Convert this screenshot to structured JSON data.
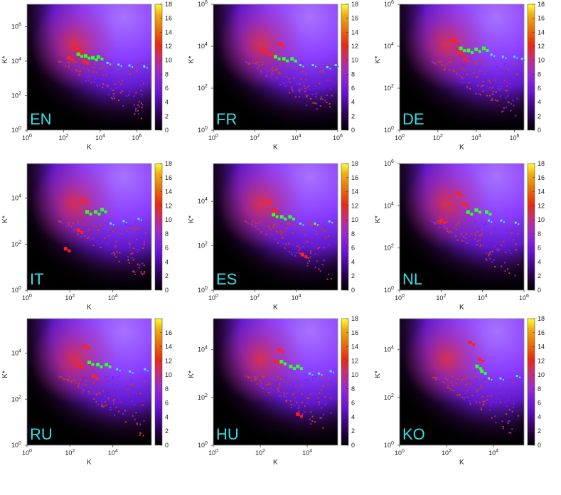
{
  "chart_data": [
    {
      "type": "heatmap",
      "panel_label": "EN",
      "xlabel": "K",
      "ylabel": "K*",
      "x_ticks": [
        "10^0",
        "10^2",
        "10^4",
        "10^6"
      ],
      "y_ticks": [
        "10^0",
        "10^2",
        "10^4",
        "10^6"
      ],
      "x_range_log10": [
        0,
        6.8
      ],
      "y_range_log10": [
        0,
        7.3
      ],
      "colorbar": [
        0,
        2,
        4,
        6,
        8,
        10,
        12,
        14,
        16,
        18
      ],
      "green_points": [
        [
          2.8,
          4.4
        ],
        [
          3.2,
          4.3
        ],
        [
          3.6,
          4.2
        ],
        [
          3.9,
          4.25
        ]
      ],
      "cyan_points": [
        [
          4.4,
          3.9
        ],
        [
          5.0,
          3.8
        ],
        [
          5.6,
          3.75
        ],
        [
          6.4,
          3.7
        ]
      ],
      "red_points": [
        [
          2.6,
          4.8
        ],
        [
          2.9,
          4.6
        ],
        [
          2.3,
          4.2
        ],
        [
          3.1,
          4.0
        ]
      ]
    },
    {
      "type": "heatmap",
      "panel_label": "FR",
      "xlabel": "K",
      "ylabel": "K*",
      "x_ticks": [
        "10^0",
        "10^2",
        "10^4",
        "10^6"
      ],
      "y_ticks": [
        "10^0",
        "10^2",
        "10^4",
        "10^6"
      ],
      "x_range_log10": [
        0,
        6
      ],
      "y_range_log10": [
        0,
        6
      ],
      "colorbar": [
        0,
        2,
        4,
        6,
        8,
        10,
        12,
        14,
        16,
        18
      ],
      "green_points": [
        [
          3.0,
          3.5
        ],
        [
          3.4,
          3.4
        ],
        [
          3.8,
          3.4
        ]
      ],
      "cyan_points": [
        [
          4.2,
          3.1
        ],
        [
          4.8,
          3.1
        ],
        [
          5.5,
          3.0
        ],
        [
          5.9,
          3.1
        ]
      ],
      "red_points": [
        [
          2.4,
          3.8
        ],
        [
          2.8,
          3.6
        ],
        [
          3.2,
          4.1
        ]
      ]
    },
    {
      "type": "heatmap",
      "panel_label": "DE",
      "xlabel": "K",
      "ylabel": "K*",
      "x_ticks": [
        "10^0",
        "10^2",
        "10^4",
        "10^6"
      ],
      "y_ticks": [
        "10^0",
        "10^2",
        "10^4",
        "10^6"
      ],
      "x_range_log10": [
        0,
        6.5
      ],
      "y_range_log10": [
        0,
        6
      ],
      "colorbar": [
        0,
        2,
        4,
        6,
        8,
        10,
        12,
        14,
        16,
        18
      ],
      "green_points": [
        [
          3.2,
          3.9
        ],
        [
          3.6,
          3.8
        ],
        [
          4.0,
          3.85
        ],
        [
          4.4,
          3.9
        ]
      ],
      "cyan_points": [
        [
          4.8,
          3.6
        ],
        [
          5.4,
          3.5
        ],
        [
          6.0,
          3.5
        ],
        [
          6.4,
          3.4
        ]
      ],
      "red_points": [
        [
          2.8,
          4.3
        ],
        [
          3.1,
          3.7
        ],
        [
          3.4,
          3.4
        ]
      ]
    },
    {
      "type": "heatmap",
      "panel_label": "IT",
      "xlabel": "K",
      "ylabel": "K*",
      "x_ticks": [
        "10^0",
        "10^2",
        "10^4"
      ],
      "y_ticks": [
        "10^0",
        "10^2",
        "10^4"
      ],
      "x_range_log10": [
        0,
        5.8
      ],
      "y_range_log10": [
        0,
        5.5
      ],
      "colorbar": [
        0,
        2,
        4,
        6,
        8,
        10,
        12,
        14,
        16,
        18
      ],
      "green_points": [
        [
          2.8,
          3.4
        ],
        [
          3.2,
          3.4
        ],
        [
          3.5,
          3.5
        ]
      ],
      "cyan_points": [
        [
          3.9,
          2.9
        ],
        [
          4.5,
          3.0
        ],
        [
          5.2,
          3.1
        ]
      ],
      "red_points": [
        [
          2.6,
          3.9
        ],
        [
          2.4,
          2.6
        ],
        [
          1.8,
          1.8
        ]
      ]
    },
    {
      "type": "heatmap",
      "panel_label": "ES",
      "xlabel": "K",
      "ylabel": "K*",
      "x_ticks": [
        "10^0",
        "10^2",
        "10^4"
      ],
      "y_ticks": [
        "10^0",
        "10^2",
        "10^4"
      ],
      "x_range_log10": [
        0,
        6
      ],
      "y_range_log10": [
        0,
        5.7
      ],
      "colorbar": [
        0,
        2,
        4,
        6,
        8,
        10,
        12,
        14,
        16,
        18
      ],
      "green_points": [
        [
          2.9,
          3.4
        ],
        [
          3.3,
          3.3
        ],
        [
          3.7,
          3.3
        ]
      ],
      "cyan_points": [
        [
          4.2,
          3.0
        ],
        [
          4.9,
          3.0
        ],
        [
          5.6,
          3.1
        ]
      ],
      "red_points": [
        [
          2.6,
          4.0
        ],
        [
          2.9,
          3.6
        ],
        [
          4.3,
          1.6
        ]
      ]
    },
    {
      "type": "heatmap",
      "panel_label": "NL",
      "xlabel": "K",
      "ylabel": "K*",
      "x_ticks": [
        "10^0",
        "10^2",
        "10^4",
        "10^6"
      ],
      "y_ticks": [
        "10^0",
        "10^2",
        "10^4",
        "10^6"
      ],
      "x_range_log10": [
        0,
        6
      ],
      "y_range_log10": [
        0,
        6
      ],
      "colorbar": [
        0,
        2,
        4,
        6,
        8,
        10,
        12,
        14,
        16,
        18
      ],
      "green_points": [
        [
          3.3,
          3.7
        ],
        [
          3.7,
          3.8
        ],
        [
          4.2,
          3.7
        ]
      ],
      "cyan_points": [
        [
          4.3,
          3.3
        ],
        [
          4.9,
          3.3
        ],
        [
          5.6,
          3.2
        ]
      ],
      "red_points": [
        [
          2.8,
          4.6
        ],
        [
          3.1,
          4.1
        ],
        [
          2.0,
          3.3
        ]
      ]
    },
    {
      "type": "heatmap",
      "panel_label": "RU",
      "xlabel": "K",
      "ylabel": "K*",
      "x_ticks": [
        "10^0",
        "10^2",
        "10^4"
      ],
      "y_ticks": [
        "10^0",
        "10^2",
        "10^4"
      ],
      "x_range_log10": [
        0,
        5.8
      ],
      "y_range_log10": [
        0,
        5.5
      ],
      "colorbar": [
        0,
        2,
        4,
        6,
        8,
        10,
        12,
        14,
        16
      ],
      "green_points": [
        [
          2.9,
          3.6
        ],
        [
          3.3,
          3.5
        ],
        [
          3.7,
          3.5
        ]
      ],
      "cyan_points": [
        [
          4.2,
          3.3
        ],
        [
          4.8,
          3.2
        ],
        [
          5.5,
          3.3
        ]
      ],
      "red_points": [
        [
          2.7,
          4.3
        ],
        [
          2.4,
          3.5
        ],
        [
          3.1,
          3.0
        ]
      ]
    },
    {
      "type": "heatmap",
      "panel_label": "HU",
      "xlabel": "K",
      "ylabel": "K*",
      "x_ticks": [
        "10^0",
        "10^2",
        "10^4"
      ],
      "y_ticks": [
        "10^0",
        "10^2",
        "10^4"
      ],
      "x_range_log10": [
        0,
        5.3
      ],
      "y_range_log10": [
        0,
        5.3
      ],
      "colorbar": [
        0,
        2,
        4,
        6,
        8,
        10,
        12,
        14,
        16,
        18
      ],
      "green_points": [
        [
          2.9,
          3.5
        ],
        [
          3.3,
          3.3
        ],
        [
          3.6,
          3.3
        ]
      ],
      "cyan_points": [
        [
          4.1,
          3.0
        ],
        [
          4.5,
          3.0
        ],
        [
          5.0,
          3.1
        ]
      ],
      "red_points": [
        [
          2.8,
          4.0
        ],
        [
          2.7,
          3.5
        ],
        [
          3.6,
          1.3
        ]
      ]
    },
    {
      "type": "heatmap",
      "panel_label": "KO",
      "xlabel": "K",
      "ylabel": "K*",
      "x_ticks": [
        "10^0",
        "10^2",
        "10^4"
      ],
      "y_ticks": [
        "10^0",
        "10^2",
        "10^4"
      ],
      "x_range_log10": [
        0,
        5.3
      ],
      "y_range_log10": [
        0,
        5.3
      ],
      "colorbar": [
        0,
        2,
        4,
        6,
        8,
        10,
        12,
        14,
        16,
        18
      ],
      "green_points": [
        [
          3.3,
          3.3
        ],
        [
          3.5,
          3.1
        ]
      ],
      "cyan_points": [
        [
          3.8,
          2.8
        ],
        [
          4.3,
          2.8
        ],
        [
          5.0,
          2.9
        ]
      ],
      "red_points": [
        [
          3.0,
          4.3
        ],
        [
          3.4,
          3.6
        ]
      ]
    }
  ]
}
